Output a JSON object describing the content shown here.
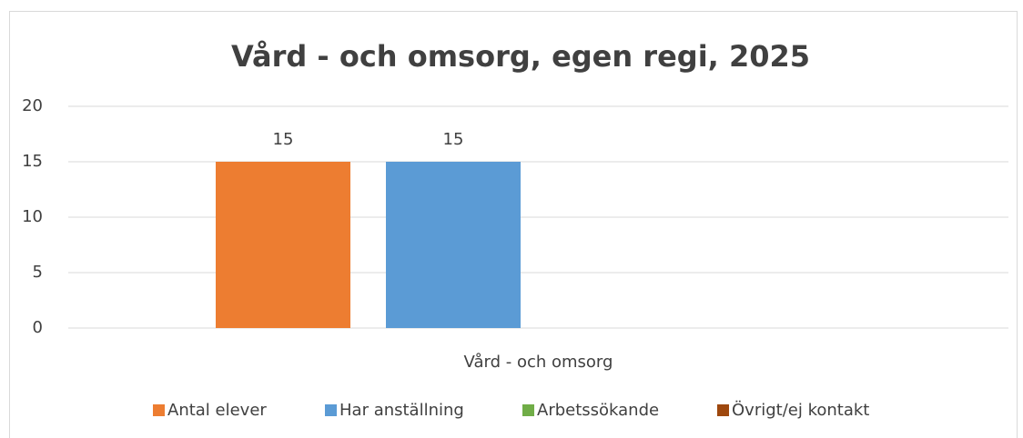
{
  "chart_data": {
    "type": "bar",
    "title": "Vård - och omsorg, egen regi, 2025",
    "categories": [
      "Vård - och omsorg"
    ],
    "series": [
      {
        "name": "Antal elever",
        "color": "#ed7d31",
        "values": [
          15
        ]
      },
      {
        "name": "Har anställning",
        "color": "#5b9bd5",
        "values": [
          15
        ]
      },
      {
        "name": "Arbetssökande",
        "color": "#70ad47",
        "values": [
          null
        ]
      },
      {
        "name": "Övrigt/ej kontakt",
        "color": "#9e480e",
        "values": [
          null
        ]
      }
    ],
    "ylim": [
      0,
      20
    ],
    "yticks": [
      0,
      5,
      10,
      15,
      20
    ],
    "grid": true,
    "legend": "bottom"
  }
}
